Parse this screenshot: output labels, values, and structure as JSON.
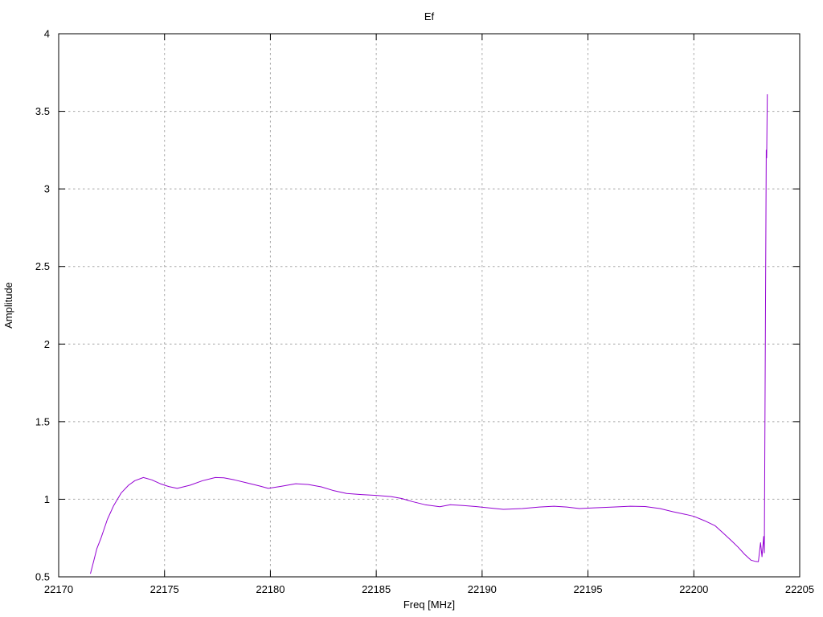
{
  "window": {
    "background": "#ffffff"
  },
  "chart_data": {
    "type": "line",
    "title": "Ef",
    "xlabel": "Freq [MHz]",
    "ylabel": "Amplitude",
    "xlim": [
      22170,
      22205
    ],
    "ylim": [
      0.5,
      4
    ],
    "grid": true,
    "legend": "none",
    "line_color": "#9400d3",
    "grid_color": "#a8a8a8",
    "axis_color": "#000000",
    "xticks": [
      [
        22170,
        "22170"
      ],
      [
        22175,
        "22175"
      ],
      [
        22180,
        "22180"
      ],
      [
        22185,
        "22185"
      ],
      [
        22190,
        "22190"
      ],
      [
        22195,
        "22195"
      ],
      [
        22200,
        "22200"
      ],
      [
        22205,
        "22205"
      ]
    ],
    "yticks": [
      [
        0.5,
        "0.5"
      ],
      [
        1,
        "1"
      ],
      [
        1.5,
        "1.5"
      ],
      [
        2,
        "2"
      ],
      [
        2.5,
        "2.5"
      ],
      [
        3,
        "3"
      ],
      [
        3.5,
        "3.5"
      ],
      [
        4,
        "4"
      ]
    ],
    "series": [
      {
        "name": "Ef",
        "points": [
          [
            22171.5,
            0.52
          ],
          [
            22171.65,
            0.6
          ],
          [
            22171.8,
            0.68
          ],
          [
            22172.0,
            0.75
          ],
          [
            22172.3,
            0.87
          ],
          [
            22172.6,
            0.96
          ],
          [
            22172.95,
            1.04
          ],
          [
            22173.3,
            1.09
          ],
          [
            22173.6,
            1.12
          ],
          [
            22174.0,
            1.14
          ],
          [
            22174.4,
            1.125
          ],
          [
            22174.8,
            1.1
          ],
          [
            22175.2,
            1.082
          ],
          [
            22175.6,
            1.07
          ],
          [
            22176.2,
            1.09
          ],
          [
            22176.8,
            1.12
          ],
          [
            22177.4,
            1.14
          ],
          [
            22177.8,
            1.138
          ],
          [
            22178.3,
            1.125
          ],
          [
            22178.9,
            1.105
          ],
          [
            22179.5,
            1.085
          ],
          [
            22179.9,
            1.07
          ],
          [
            22180.5,
            1.083
          ],
          [
            22181.2,
            1.1
          ],
          [
            22181.8,
            1.095
          ],
          [
            22182.4,
            1.08
          ],
          [
            22183.0,
            1.055
          ],
          [
            22183.6,
            1.037
          ],
          [
            22184.3,
            1.03
          ],
          [
            22185.0,
            1.025
          ],
          [
            22185.7,
            1.017
          ],
          [
            22186.2,
            1.005
          ],
          [
            22186.7,
            0.985
          ],
          [
            22187.3,
            0.965
          ],
          [
            22188.0,
            0.952
          ],
          [
            22188.5,
            0.965
          ],
          [
            22189.1,
            0.96
          ],
          [
            22189.7,
            0.953
          ],
          [
            22190.3,
            0.945
          ],
          [
            22191.0,
            0.935
          ],
          [
            22191.9,
            0.94
          ],
          [
            22192.7,
            0.95
          ],
          [
            22193.4,
            0.955
          ],
          [
            22194.0,
            0.95
          ],
          [
            22194.6,
            0.94
          ],
          [
            22195.3,
            0.945
          ],
          [
            22196.2,
            0.95
          ],
          [
            22197.0,
            0.955
          ],
          [
            22197.7,
            0.953
          ],
          [
            22198.4,
            0.94
          ],
          [
            22199.0,
            0.92
          ],
          [
            22199.6,
            0.903
          ],
          [
            22200.0,
            0.89
          ],
          [
            22200.5,
            0.862
          ],
          [
            22201.0,
            0.83
          ],
          [
            22201.4,
            0.78
          ],
          [
            22201.8,
            0.73
          ],
          [
            22202.1,
            0.69
          ],
          [
            22202.4,
            0.645
          ],
          [
            22202.7,
            0.607
          ],
          [
            22202.9,
            0.6
          ],
          [
            22203.05,
            0.598
          ],
          [
            22203.15,
            0.72
          ],
          [
            22203.22,
            0.63
          ],
          [
            22203.3,
            0.76
          ],
          [
            22203.33,
            0.655
          ],
          [
            22203.42,
            3.25
          ],
          [
            22203.44,
            3.2
          ],
          [
            22203.47,
            3.61
          ]
        ]
      }
    ]
  }
}
